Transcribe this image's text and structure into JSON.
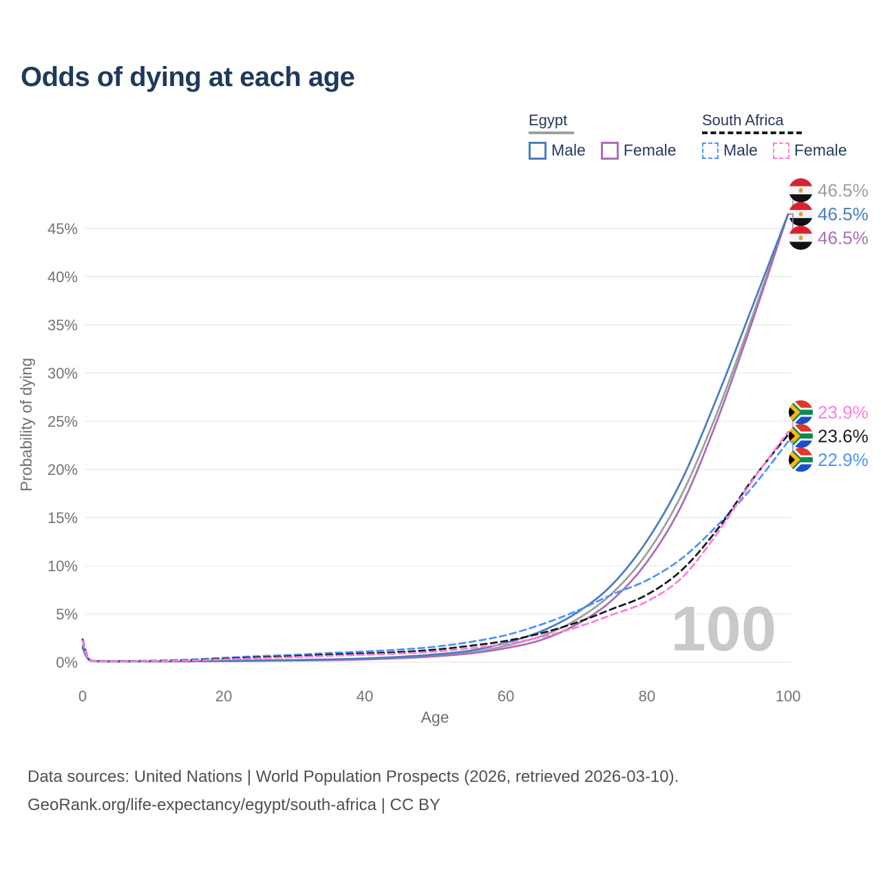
{
  "page": {
    "title": "Odds of dying at each age"
  },
  "legend": {
    "groups": [
      {
        "label": "Egypt",
        "line_style": "solid",
        "line_color": "#9e9e9e",
        "items": [
          {
            "label": "Male",
            "color": "#4a7ebf",
            "dashed": false
          },
          {
            "label": "Female",
            "color": "#a96fb4",
            "dashed": false
          }
        ]
      },
      {
        "label": "South Africa",
        "line_style": "dashed",
        "line_color": "#1a1a1a",
        "items": [
          {
            "label": "Male",
            "color": "#4e93fa",
            "dashed": true
          },
          {
            "label": "Female",
            "color": "#ff7ce0",
            "dashed": true
          }
        ]
      }
    ]
  },
  "chart_data": {
    "type": "line",
    "xlabel": "Age",
    "ylabel": "Probability of dying",
    "xlim": [
      0,
      100
    ],
    "ylim_percent": [
      0,
      48
    ],
    "grid": "horizontal",
    "x_ticks": [
      0,
      20,
      40,
      60,
      80,
      100
    ],
    "y_ticks_percent": [
      0,
      5,
      10,
      15,
      20,
      25,
      30,
      35,
      40,
      45
    ],
    "y_tick_labels": [
      "0%",
      "5%",
      "10%",
      "15%",
      "20%",
      "25%",
      "30%",
      "35%",
      "40%",
      "45%"
    ],
    "age_cursor": "100",
    "x": [
      0,
      1,
      3,
      5,
      10,
      15,
      20,
      25,
      30,
      35,
      40,
      45,
      50,
      55,
      60,
      65,
      70,
      75,
      80,
      85,
      90,
      95,
      100
    ],
    "series": [
      {
        "name": "Egypt",
        "country": "Egypt",
        "flag": "egypt",
        "color": "#9e9e9e",
        "dash": "solid",
        "end_label": "46.5%",
        "values": [
          1.55,
          0.18,
          0.07,
          0.06,
          0.07,
          0.09,
          0.12,
          0.15,
          0.19,
          0.24,
          0.33,
          0.47,
          0.7,
          1.0,
          1.7,
          2.7,
          4.4,
          7.1,
          11.3,
          17.5,
          26.0,
          36.0,
          46.5
        ]
      },
      {
        "name": "Egypt Male",
        "country": "Egypt",
        "flag": "egypt",
        "color": "#4a7ebf",
        "dash": "solid",
        "end_label": "46.5%",
        "values": [
          1.7,
          0.2,
          0.08,
          0.07,
          0.08,
          0.1,
          0.14,
          0.18,
          0.22,
          0.28,
          0.38,
          0.55,
          0.8,
          1.2,
          2.0,
          3.2,
          5.1,
          8.0,
          12.6,
          19.0,
          27.6,
          37.0,
          46.5
        ]
      },
      {
        "name": "Egypt Female",
        "country": "Egypt",
        "flag": "egypt",
        "color": "#a96fb4",
        "dash": "solid",
        "end_label": "46.5%",
        "values": [
          1.45,
          0.16,
          0.06,
          0.05,
          0.06,
          0.08,
          0.1,
          0.13,
          0.16,
          0.2,
          0.28,
          0.4,
          0.6,
          0.9,
          1.45,
          2.3,
          3.9,
          6.4,
          10.4,
          16.4,
          25.2,
          35.5,
          46.5
        ]
      },
      {
        "name": "South Africa Female",
        "country": "South Africa",
        "flag": "south-africa",
        "color": "#ff7ce0",
        "dash": "dashed",
        "end_label": "23.9%",
        "values": [
          2.2,
          0.2,
          0.09,
          0.09,
          0.11,
          0.17,
          0.28,
          0.4,
          0.52,
          0.65,
          0.77,
          0.9,
          1.1,
          1.45,
          1.9,
          2.6,
          3.6,
          4.9,
          6.3,
          8.8,
          13.4,
          18.9,
          23.9
        ]
      },
      {
        "name": "South Africa",
        "country": "South Africa",
        "flag": "south-africa",
        "color": "#1a1a1a",
        "dash": "dashed",
        "end_label": "23.6%",
        "values": [
          2.3,
          0.22,
          0.1,
          0.1,
          0.13,
          0.2,
          0.35,
          0.5,
          0.62,
          0.78,
          0.9,
          1.05,
          1.3,
          1.7,
          2.2,
          3.0,
          4.1,
          5.5,
          7.0,
          9.6,
          13.8,
          19.0,
          23.6
        ]
      },
      {
        "name": "South Africa Male",
        "country": "South Africa",
        "flag": "south-africa",
        "color": "#4e93fa",
        "dash": "dashed",
        "end_label": "22.9%",
        "values": [
          2.4,
          0.25,
          0.12,
          0.12,
          0.15,
          0.25,
          0.45,
          0.62,
          0.76,
          0.95,
          1.1,
          1.3,
          1.6,
          2.1,
          2.8,
          3.9,
          5.3,
          7.0,
          8.5,
          10.8,
          14.2,
          18.2,
          22.9
        ]
      }
    ]
  },
  "footer": {
    "line1": "Data sources: United Nations | World Population Prospects (2026, retrieved 2026-03-10).",
    "line2": "GeoRank.org/life-expectancy/egypt/south-africa | CC BY"
  }
}
